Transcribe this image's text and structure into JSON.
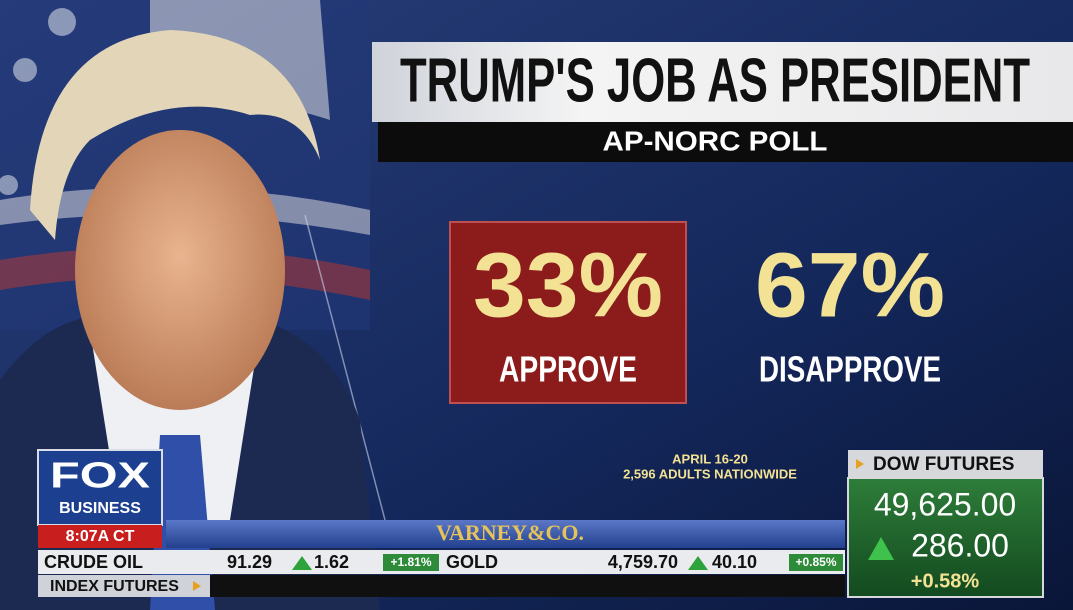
{
  "graphic": {
    "title": "TRUMP'S JOB AS PRESIDENT",
    "subtitle": "AP-NORC POLL",
    "results": [
      {
        "value": "33%",
        "label": "APPROVE"
      },
      {
        "value": "67%",
        "label": "DISAPPROVE"
      }
    ],
    "note": [
      "APRIL 16-20",
      "2,596 ADULTS NATIONWIDE"
    ]
  },
  "network": {
    "logo": "FOX",
    "logo_sub": "BUSINESS",
    "time": "8:07A CT",
    "show": "VARNEY&CO."
  },
  "ticker": {
    "items": [
      {
        "name": "CRUDE OIL",
        "price": "91.29",
        "change": "1.62",
        "pct": "+1.81%"
      },
      {
        "name": "GOLD",
        "price": "4,759.70",
        "change": "40.10",
        "pct": "+0.85%"
      }
    ],
    "section": "INDEX FUTURES"
  },
  "dow": {
    "label": "DOW FUTURES",
    "value": "49,625.00",
    "change": "286.00",
    "pct": "+0.58%"
  }
}
